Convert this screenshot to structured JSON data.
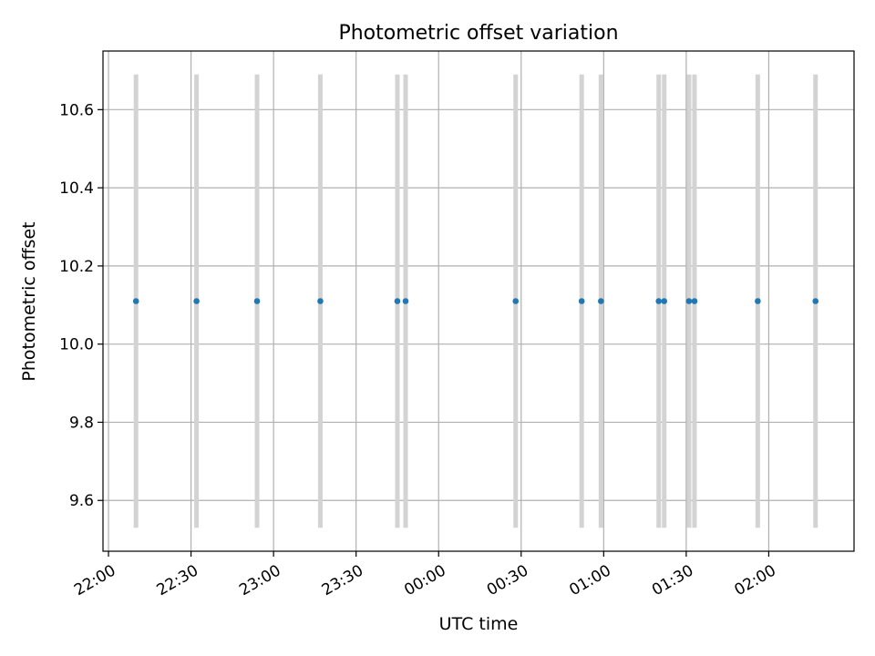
{
  "chart_data": {
    "type": "scatter",
    "title": "Photometric offset variation",
    "xlabel": "UTC time",
    "ylabel": "Photometric offset",
    "x_axis_type": "time",
    "xlim": [
      "21:58",
      "02:31"
    ],
    "ylim": [
      9.47,
      10.75
    ],
    "x_ticks": [
      "22:00",
      "22:30",
      "23:00",
      "23:30",
      "00:00",
      "00:30",
      "01:00",
      "01:30",
      "02:00"
    ],
    "y_ticks": [
      9.6,
      9.8,
      10.0,
      10.2,
      10.4,
      10.6
    ],
    "grid": true,
    "legend": false,
    "points": [
      {
        "x": "22:10",
        "y": 10.11,
        "err_low": 9.53,
        "err_high": 10.69
      },
      {
        "x": "22:32",
        "y": 10.11,
        "err_low": 9.53,
        "err_high": 10.69
      },
      {
        "x": "22:54",
        "y": 10.11,
        "err_low": 9.53,
        "err_high": 10.69
      },
      {
        "x": "23:17",
        "y": 10.11,
        "err_low": 9.53,
        "err_high": 10.69
      },
      {
        "x": "23:45",
        "y": 10.11,
        "err_low": 9.53,
        "err_high": 10.69
      },
      {
        "x": "23:48",
        "y": 10.11,
        "err_low": 9.53,
        "err_high": 10.69
      },
      {
        "x": "00:28",
        "y": 10.11,
        "err_low": 9.53,
        "err_high": 10.69
      },
      {
        "x": "00:52",
        "y": 10.11,
        "err_low": 9.53,
        "err_high": 10.69
      },
      {
        "x": "00:59",
        "y": 10.11,
        "err_low": 9.53,
        "err_high": 10.69
      },
      {
        "x": "01:20",
        "y": 10.11,
        "err_low": 9.53,
        "err_high": 10.69
      },
      {
        "x": "01:22",
        "y": 10.11,
        "err_low": 9.53,
        "err_high": 10.69
      },
      {
        "x": "01:31",
        "y": 10.11,
        "err_low": 9.53,
        "err_high": 10.69
      },
      {
        "x": "01:33",
        "y": 10.11,
        "err_low": 9.53,
        "err_high": 10.69
      },
      {
        "x": "01:56",
        "y": 10.11,
        "err_low": 9.53,
        "err_high": 10.69
      },
      {
        "x": "02:17",
        "y": 10.11,
        "err_low": 9.53,
        "err_high": 10.69
      }
    ],
    "colors": {
      "marker": "#1f77b4",
      "error_bar": "#d3d3d3",
      "grid": "#b0b0b0",
      "axis": "#000000"
    }
  }
}
